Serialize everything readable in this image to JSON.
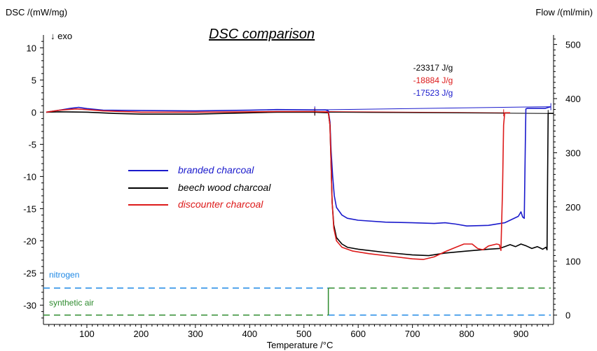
{
  "chart_data": {
    "type": "line",
    "title": "DSC comparison",
    "y_left_label": "DSC /(mW/mg)",
    "y_right_label": "Flow /(ml/min)",
    "xlabel": "Temperature /°C",
    "exo_label": "↓ exo",
    "xlim": [
      20,
      960
    ],
    "ylim": [
      -33,
      12
    ],
    "y_right_lim": [
      -17.2,
      517.6
    ],
    "x_ticks": [
      100,
      200,
      300,
      400,
      500,
      600,
      700,
      800,
      900
    ],
    "y_ticks": [
      10,
      5,
      0,
      -5,
      -10,
      -15,
      -20,
      -25,
      -30
    ],
    "y_right_ticks": [
      500,
      400,
      300,
      200,
      100,
      0
    ],
    "grid": false,
    "legend_position": "center-left",
    "series": [
      {
        "name": "branded charcoal",
        "color": "#1a1acc",
        "points": [
          [
            25,
            0.0
          ],
          [
            50,
            0.3
          ],
          [
            70,
            0.6
          ],
          [
            85,
            0.75
          ],
          [
            100,
            0.55
          ],
          [
            130,
            0.3
          ],
          [
            200,
            0.25
          ],
          [
            300,
            0.2
          ],
          [
            400,
            0.3
          ],
          [
            450,
            0.4
          ],
          [
            520,
            0.35
          ],
          [
            540,
            0.35
          ],
          [
            545,
            0.2
          ],
          [
            548,
            -1.5
          ],
          [
            550,
            -6.0
          ],
          [
            553,
            -10.0
          ],
          [
            556,
            -13.0
          ],
          [
            560,
            -14.8
          ],
          [
            570,
            -16.0
          ],
          [
            580,
            -16.5
          ],
          [
            600,
            -16.8
          ],
          [
            650,
            -17.1
          ],
          [
            700,
            -17.2
          ],
          [
            740,
            -17.3
          ],
          [
            760,
            -17.2
          ],
          [
            780,
            -17.4
          ],
          [
            800,
            -17.7
          ],
          [
            840,
            -17.6
          ],
          [
            870,
            -17.2
          ],
          [
            895,
            -16.2
          ],
          [
            900,
            -15.5
          ],
          [
            903,
            -16.3
          ],
          [
            906,
            -16.5
          ],
          [
            908,
            -5.0
          ],
          [
            909,
            0.5
          ],
          [
            912,
            0.6
          ],
          [
            930,
            0.6
          ],
          [
            945,
            0.6
          ],
          [
            955,
            0.85
          ]
        ]
      },
      {
        "name": "beech wood charcoal",
        "color": "#000000",
        "points": [
          [
            25,
            0.0
          ],
          [
            50,
            0.05
          ],
          [
            100,
            0.0
          ],
          [
            150,
            -0.2
          ],
          [
            200,
            -0.3
          ],
          [
            300,
            -0.3
          ],
          [
            400,
            -0.1
          ],
          [
            450,
            0.0
          ],
          [
            520,
            0.0
          ],
          [
            545,
            -0.1
          ],
          [
            548,
            -2.0
          ],
          [
            550,
            -8.0
          ],
          [
            552,
            -14.0
          ],
          [
            555,
            -17.5
          ],
          [
            560,
            -19.5
          ],
          [
            570,
            -20.5
          ],
          [
            580,
            -21.0
          ],
          [
            600,
            -21.3
          ],
          [
            650,
            -21.8
          ],
          [
            700,
            -22.2
          ],
          [
            730,
            -22.3
          ],
          [
            760,
            -21.9
          ],
          [
            800,
            -21.6
          ],
          [
            840,
            -21.3
          ],
          [
            860,
            -21.2
          ],
          [
            870,
            -20.9
          ],
          [
            880,
            -20.6
          ],
          [
            890,
            -20.9
          ],
          [
            900,
            -20.5
          ],
          [
            910,
            -20.8
          ],
          [
            920,
            -21.2
          ],
          [
            930,
            -20.9
          ],
          [
            940,
            -21.3
          ],
          [
            946,
            -21.0
          ],
          [
            948,
            -21.4
          ],
          [
            949,
            -10.0
          ],
          [
            950,
            -0.2
          ],
          [
            960,
            -0.2
          ]
        ]
      },
      {
        "name": "discounter charcoal",
        "color": "#dd1a1a",
        "points": [
          [
            25,
            0.0
          ],
          [
            50,
            0.3
          ],
          [
            80,
            0.5
          ],
          [
            100,
            0.4
          ],
          [
            130,
            0.2
          ],
          [
            200,
            0.0
          ],
          [
            300,
            0.0
          ],
          [
            400,
            0.05
          ],
          [
            450,
            0.1
          ],
          [
            520,
            0.1
          ],
          [
            545,
            0.0
          ],
          [
            548,
            -2.0
          ],
          [
            550,
            -8.0
          ],
          [
            552,
            -14.0
          ],
          [
            555,
            -18.0
          ],
          [
            560,
            -20.0
          ],
          [
            570,
            -21.0
          ],
          [
            590,
            -21.6
          ],
          [
            620,
            -22.0
          ],
          [
            660,
            -22.4
          ],
          [
            700,
            -22.8
          ],
          [
            720,
            -22.9
          ],
          [
            740,
            -22.5
          ],
          [
            760,
            -21.7
          ],
          [
            780,
            -21.0
          ],
          [
            795,
            -20.5
          ],
          [
            810,
            -20.5
          ],
          [
            820,
            -21.2
          ],
          [
            830,
            -21.4
          ],
          [
            840,
            -20.8
          ],
          [
            855,
            -20.5
          ],
          [
            860,
            -20.6
          ],
          [
            863,
            -21.5
          ],
          [
            866,
            -12.0
          ],
          [
            868,
            -2.0
          ],
          [
            870,
            -0.1
          ],
          [
            880,
            -0.1
          ]
        ]
      }
    ],
    "enthalpies": [
      {
        "text": "-23317 J/g",
        "color": "#000000"
      },
      {
        "text": "-18884 J/g",
        "color": "#dd1a1a"
      },
      {
        "text": "-17523 J/g",
        "color": "#1a1acc"
      }
    ],
    "flow_series": [
      {
        "name": "nitrogen",
        "color": "#1e88e5",
        "segments": [
          [
            [
              20,
              50
            ],
            [
              545,
              50
            ]
          ],
          [
            [
              545,
              0
            ],
            [
              955,
              0
            ]
          ]
        ]
      },
      {
        "name": "synthetic air",
        "color": "#2e8b2e",
        "segments": [
          [
            [
              20,
              0
            ],
            [
              545,
              0
            ]
          ],
          [
            [
              545,
              0
            ],
            [
              545,
              50
            ]
          ],
          [
            [
              545,
              50
            ],
            [
              955,
              50
            ]
          ]
        ]
      }
    ],
    "baselines": [
      {
        "color": "#1a1acc",
        "from": [
          520,
          0.35
        ],
        "to": [
          955,
          0.85
        ]
      },
      {
        "color": "#dd1a1a",
        "from": [
          520,
          0.1
        ],
        "to": [
          868,
          -0.1
        ]
      },
      {
        "color": "#000000",
        "from": [
          520,
          0.0
        ],
        "to": [
          950,
          -0.2
        ]
      }
    ]
  }
}
